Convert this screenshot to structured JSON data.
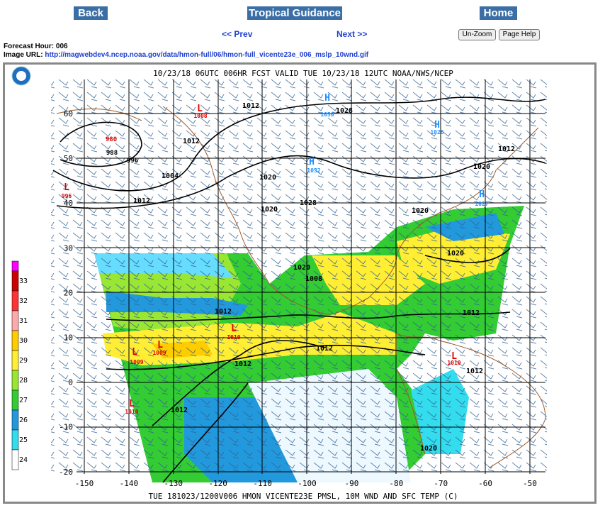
{
  "nav": {
    "back": "Back",
    "tropical": "Tropical Guidance",
    "home": "Home",
    "prev": "<< Prev",
    "next": "Next >>",
    "unzoom": "Un-Zoom",
    "help": "Page Help"
  },
  "info": {
    "forecast_hour": "Forecast Hour: 006",
    "image_url_label": "Image URL:",
    "image_url": "http://magwebdev4.ncep.noaa.gov/data/hmon-full/06/hmon-full_vicente23e_006_mslp_10wnd.gif"
  },
  "map": {
    "header": "10/23/18 06UTC  006HR  FCST VALID TUE 10/23/18 12UTC  NOAA/NWS/NCEP",
    "footer": "TUE 181023/1200V006 HMON VICENTE23E PMSL, 10M WND AND SFC TEMP (C)",
    "x_labels": [
      "-150",
      "-140",
      "-130",
      "-120",
      "-110",
      "-100",
      "-90",
      "-80",
      "-70",
      "-60",
      "-50"
    ],
    "y_labels": [
      "60",
      "50",
      "40",
      "30",
      "20",
      "10",
      "0",
      "-10",
      "-20"
    ],
    "colorbar": [
      "33",
      "32",
      "31",
      "30",
      "29",
      "28",
      "27",
      "26",
      "25",
      "24"
    ],
    "labels": [
      "L",
      "1008",
      "1012",
      "H",
      "1030",
      "1028",
      "1012",
      "980",
      "988",
      "996",
      "1004",
      "L",
      "996",
      "1012",
      "1020",
      "1020",
      "1028",
      "H",
      "1032",
      "H",
      "1027",
      "1020",
      "1012",
      "1020",
      "1020",
      "1012",
      "1012",
      "1012",
      "1012",
      "L",
      "1009",
      "L",
      "1009",
      "L",
      "1010",
      "L",
      "1010",
      "1012",
      "1012",
      "L",
      "1010",
      "1020",
      "1008",
      "1020",
      "H",
      "1026"
    ]
  }
}
